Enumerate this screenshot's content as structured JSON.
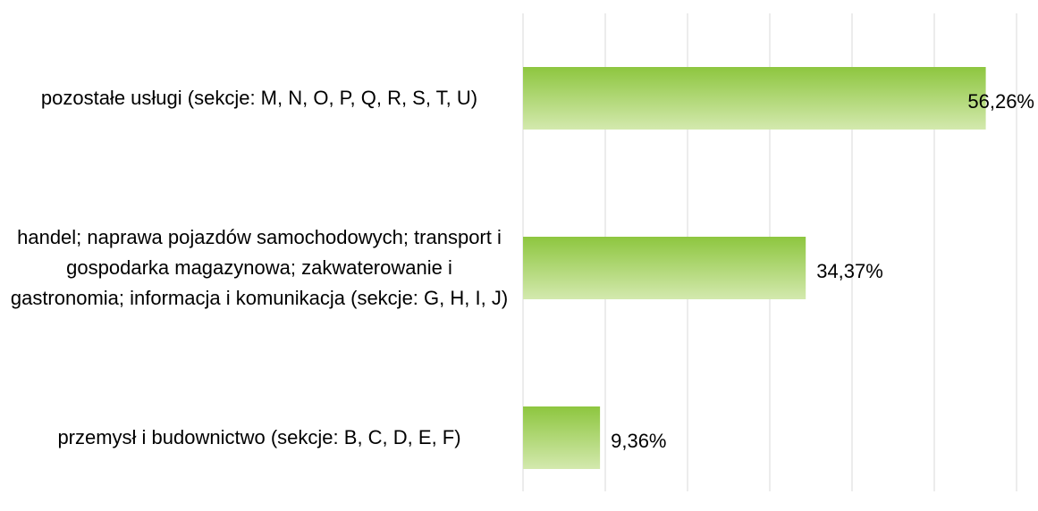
{
  "chart_data": {
    "type": "bar",
    "orientation": "horizontal",
    "categories": [
      "pozostałe usługi (sekcje: M, N, O, P, Q, R, S, T, U)",
      "handel; naprawa pojazdów samochodowych; transport i gospodarka magazynowa; zakwaterowanie i gastronomia; informacja i komunikacja (sekcje: G, H, I, J)",
      "przemysł i budownictwo (sekcje: B, C, D, E, F)"
    ],
    "values": [
      56.26,
      34.37,
      9.36
    ],
    "value_labels": [
      "56,26%",
      "34,37%",
      "9,36%"
    ],
    "color": "#8dc63f",
    "xlim": [
      0,
      60
    ],
    "xticks": [
      0,
      10,
      20,
      30,
      40,
      50,
      60
    ],
    "grid": true
  }
}
